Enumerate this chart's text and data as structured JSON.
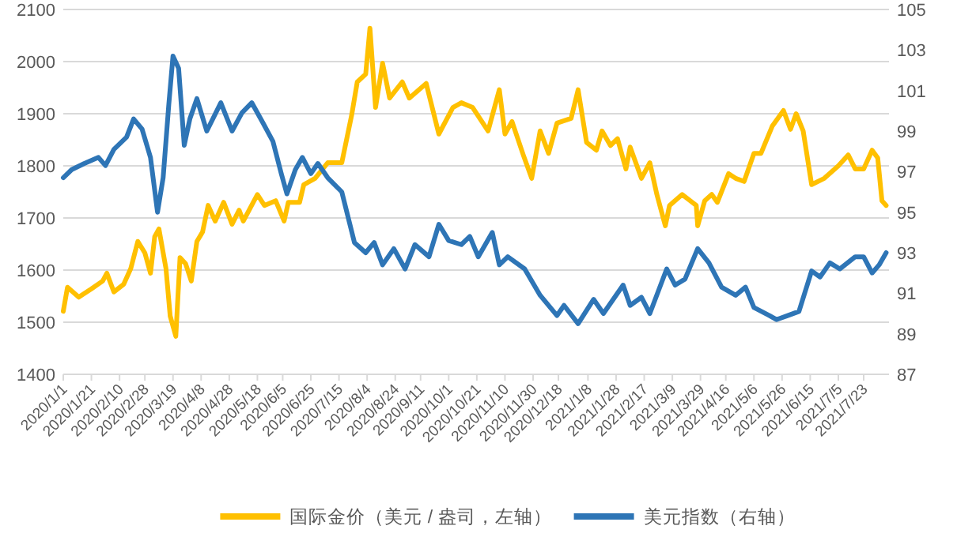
{
  "chart_data": {
    "type": "line",
    "xlim": [
      "2020-01-01",
      "2021-08-10"
    ],
    "ylim": [
      1400,
      2100
    ],
    "yticks": [
      1400,
      1500,
      1600,
      1700,
      1800,
      1900,
      2000,
      2100
    ],
    "y2lim": [
      87,
      105
    ],
    "y2ticks": [
      87,
      89,
      91,
      93,
      95,
      97,
      99,
      101,
      103,
      105
    ],
    "xticks": [
      {
        "value": "2020-01-01",
        "label": "2020/1/1"
      },
      {
        "value": "2020-01-21",
        "label": "2020/1/21"
      },
      {
        "value": "2020-02-10",
        "label": "2020/2/10"
      },
      {
        "value": "2020-02-28",
        "label": "2020/2/28"
      },
      {
        "value": "2020-03-19",
        "label": "2020/3/19"
      },
      {
        "value": "2020-04-08",
        "label": "2020/4/8"
      },
      {
        "value": "2020-04-28",
        "label": "2020/4/28"
      },
      {
        "value": "2020-05-18",
        "label": "2020/5/18"
      },
      {
        "value": "2020-06-05",
        "label": "2020/6/5"
      },
      {
        "value": "2020-06-25",
        "label": "2020/6/25"
      },
      {
        "value": "2020-07-15",
        "label": "2020/7/15"
      },
      {
        "value": "2020-08-04",
        "label": "2020/8/4"
      },
      {
        "value": "2020-08-24",
        "label": "2020/8/24"
      },
      {
        "value": "2020-09-11",
        "label": "2020/9/11"
      },
      {
        "value": "2020-10-01",
        "label": "2020/10/1"
      },
      {
        "value": "2020-10-21",
        "label": "2020/10/21"
      },
      {
        "value": "2020-11-10",
        "label": "2020/11/10"
      },
      {
        "value": "2020-11-30",
        "label": "2020/11/30"
      },
      {
        "value": "2020-12-18",
        "label": "2020/12/18"
      },
      {
        "value": "2021-01-08",
        "label": "2021/1/8"
      },
      {
        "value": "2021-01-28",
        "label": "2021/1/28"
      },
      {
        "value": "2021-02-17",
        "label": "2021/2/17"
      },
      {
        "value": "2021-03-09",
        "label": "2021/3/9"
      },
      {
        "value": "2021-03-29",
        "label": "2021/3/29"
      },
      {
        "value": "2021-04-16",
        "label": "2021/4/16"
      },
      {
        "value": "2021-05-06",
        "label": "2021/5/6"
      },
      {
        "value": "2021-05-26",
        "label": "2021/5/26"
      },
      {
        "value": "2021-06-15",
        "label": "2021/6/15"
      },
      {
        "value": "2021-07-05",
        "label": "2021/7/5"
      },
      {
        "value": "2021-07-23",
        "label": "2021/7/23"
      }
    ],
    "grid": "y",
    "legend": "bottom",
    "series": [
      {
        "name": "国际金价（美元 / 盎司，左轴）",
        "color": "#ffc000",
        "x": [
          "2020-01-01",
          "2020-01-04",
          "2020-01-12",
          "2020-01-21",
          "2020-01-29",
          "2020-02-01",
          "2020-02-06",
          "2020-02-13",
          "2020-02-18",
          "2020-02-23",
          "2020-02-28",
          "2020-03-03",
          "2020-03-06",
          "2020-03-09",
          "2020-03-14",
          "2020-03-17",
          "2020-03-21",
          "2020-03-24",
          "2020-03-28",
          "2020-04-01",
          "2020-04-05",
          "2020-04-09",
          "2020-04-13",
          "2020-04-18",
          "2020-04-24",
          "2020-04-30",
          "2020-05-05",
          "2020-05-08",
          "2020-05-18",
          "2020-05-23",
          "2020-05-31",
          "2020-06-06",
          "2020-06-09",
          "2020-06-17",
          "2020-06-20",
          "2020-06-28",
          "2020-07-07",
          "2020-07-17",
          "2020-07-24",
          "2020-07-28",
          "2020-08-03",
          "2020-08-06",
          "2020-08-10",
          "2020-08-15",
          "2020-08-20",
          "2020-08-29",
          "2020-09-03",
          "2020-09-15",
          "2020-09-24",
          "2020-10-04",
          "2020-10-10",
          "2020-10-18",
          "2020-10-29",
          "2020-11-06",
          "2020-11-10",
          "2020-11-15",
          "2020-11-23",
          "2020-11-29",
          "2020-12-05",
          "2020-12-11",
          "2020-12-17",
          "2020-12-27",
          "2021-01-01",
          "2021-01-07",
          "2021-01-14",
          "2021-01-18",
          "2021-01-24",
          "2021-01-29",
          "2021-02-04",
          "2021-02-07",
          "2021-02-15",
          "2021-02-21",
          "2021-02-26",
          "2021-03-04",
          "2021-03-07",
          "2021-03-16",
          "2021-03-26",
          "2021-03-27",
          "2021-04-01",
          "2021-04-06",
          "2021-04-10",
          "2021-04-18",
          "2021-04-23",
          "2021-04-29",
          "2021-05-06",
          "2021-05-11",
          "2021-05-19",
          "2021-05-27",
          "2021-06-01",
          "2021-06-05",
          "2021-06-10",
          "2021-06-16",
          "2021-06-25",
          "2021-07-05",
          "2021-07-12",
          "2021-07-17",
          "2021-07-23",
          "2021-07-29",
          "2021-08-02",
          "2021-08-05",
          "2021-08-08"
        ],
        "values": [
          1521,
          1567,
          1548,
          1564,
          1579,
          1594,
          1558,
          1573,
          1603,
          1655,
          1633,
          1594,
          1664,
          1679,
          1603,
          1512,
          1473,
          1624,
          1612,
          1579,
          1655,
          1673,
          1724,
          1694,
          1730,
          1688,
          1715,
          1694,
          1745,
          1724,
          1733,
          1694,
          1730,
          1730,
          1764,
          1776,
          1806,
          1806,
          1897,
          1961,
          1976,
          2064,
          1912,
          1997,
          1930,
          1961,
          1930,
          1958,
          1861,
          1912,
          1921,
          1912,
          1867,
          1946,
          1861,
          1885,
          1821,
          1776,
          1867,
          1824,
          1882,
          1891,
          1946,
          1845,
          1830,
          1867,
          1839,
          1852,
          1794,
          1836,
          1776,
          1806,
          1745,
          1685,
          1724,
          1745,
          1724,
          1685,
          1733,
          1745,
          1730,
          1785,
          1776,
          1770,
          1824,
          1824,
          1876,
          1906,
          1870,
          1900,
          1867,
          1764,
          1776,
          1800,
          1821,
          1794,
          1794,
          1830,
          1815,
          1733,
          1724
        ]
      },
      {
        "name": "美元指数（右轴）",
        "color": "#2e75b6",
        "axis": "y2",
        "x": [
          "2020-01-01",
          "2020-01-07",
          "2020-01-16",
          "2020-01-26",
          "2020-01-31",
          "2020-02-06",
          "2020-02-15",
          "2020-02-20",
          "2020-02-26",
          "2020-03-03",
          "2020-03-08",
          "2020-03-12",
          "2020-03-16",
          "2020-03-19",
          "2020-03-23",
          "2020-03-27",
          "2020-03-31",
          "2020-04-05",
          "2020-04-12",
          "2020-04-22",
          "2020-04-30",
          "2020-05-07",
          "2020-05-14",
          "2020-05-22",
          "2020-05-29",
          "2020-06-04",
          "2020-06-08",
          "2020-06-14",
          "2020-06-19",
          "2020-06-25",
          "2020-06-30",
          "2020-07-07",
          "2020-07-17",
          "2020-07-26",
          "2020-08-03",
          "2020-08-09",
          "2020-08-15",
          "2020-08-23",
          "2020-08-31",
          "2020-09-07",
          "2020-09-17",
          "2020-09-24",
          "2020-10-01",
          "2020-10-10",
          "2020-10-16",
          "2020-10-22",
          "2020-11-01",
          "2020-11-06",
          "2020-11-12",
          "2020-11-24",
          "2020-12-05",
          "2020-12-17",
          "2020-12-22",
          "2021-01-01",
          "2021-01-12",
          "2021-01-19",
          "2021-02-02",
          "2021-02-07",
          "2021-02-15",
          "2021-02-21",
          "2021-02-27",
          "2021-03-05",
          "2021-03-11",
          "2021-03-18",
          "2021-03-27",
          "2021-04-04",
          "2021-04-13",
          "2021-04-23",
          "2021-04-30",
          "2021-05-06",
          "2021-05-17",
          "2021-05-22",
          "2021-05-30",
          "2021-06-07",
          "2021-06-16",
          "2021-06-22",
          "2021-06-29",
          "2021-07-06",
          "2021-07-17",
          "2021-07-23",
          "2021-07-29",
          "2021-08-03",
          "2021-08-08"
        ],
        "values": [
          96.7,
          97.1,
          97.4,
          97.7,
          97.3,
          98.1,
          98.7,
          99.6,
          99.1,
          97.7,
          95.0,
          96.7,
          100.3,
          102.7,
          102.1,
          98.3,
          99.6,
          100.6,
          99.0,
          100.4,
          99.0,
          99.9,
          100.4,
          99.4,
          98.5,
          96.9,
          95.9,
          97.1,
          97.7,
          96.9,
          97.4,
          96.7,
          96.0,
          93.5,
          93.0,
          93.5,
          92.4,
          93.2,
          92.2,
          93.4,
          92.8,
          94.4,
          93.6,
          93.4,
          93.8,
          92.8,
          94.0,
          92.4,
          92.8,
          92.2,
          90.9,
          89.9,
          90.4,
          89.5,
          90.7,
          90.0,
          91.4,
          90.4,
          90.8,
          90.0,
          91.1,
          92.2,
          91.4,
          91.7,
          93.2,
          92.5,
          91.3,
          90.9,
          91.3,
          90.3,
          89.9,
          89.7,
          89.9,
          90.1,
          92.1,
          91.8,
          92.5,
          92.2,
          92.8,
          92.8,
          92.0,
          92.4,
          93.0
        ]
      }
    ]
  }
}
